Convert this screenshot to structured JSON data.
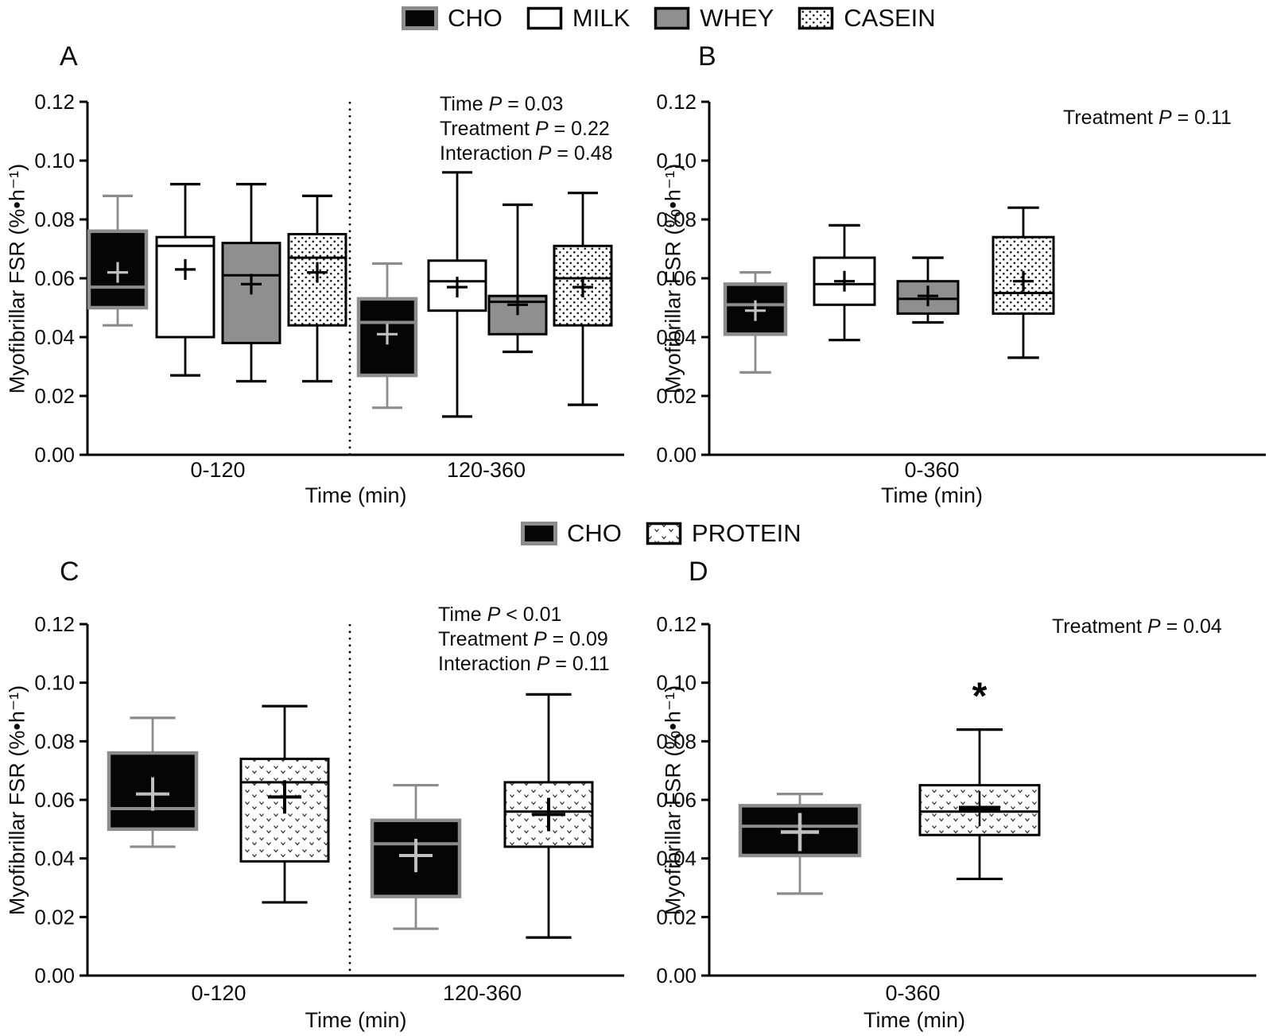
{
  "figure": {
    "y_ticks": [
      "0.00",
      "0.02",
      "0.04",
      "0.06",
      "0.08",
      "0.10",
      "0.12"
    ],
    "ylim": [
      0,
      0.12
    ],
    "colors": {
      "cho_fill": "#050505",
      "cho_border": "#8c8c8c",
      "cho_mean": "#c0c0c0",
      "milk_fill": "#ffffff",
      "whey_fill": "#8f8f8f",
      "line_black": "#000000",
      "background": "#ffffff"
    }
  },
  "legends": [
    {
      "items": [
        {
          "label": "CHO",
          "style": "cho"
        },
        {
          "label": "MILK",
          "style": "milk"
        },
        {
          "label": "WHEY",
          "style": "whey"
        },
        {
          "label": "CASEIN",
          "style": "casein"
        }
      ]
    },
    {
      "items": [
        {
          "label": "CHO",
          "style": "cho"
        },
        {
          "label": "PROTEIN",
          "style": "protein"
        }
      ]
    }
  ],
  "chart_data": [
    {
      "type": "boxplot",
      "panel": "A",
      "ylabel": "Myofibrillar FSR (%•h⁻¹)",
      "xlabel": "Time (min)",
      "ylim": [
        0,
        0.12
      ],
      "stats": [
        {
          "pre": "Time ",
          "p": "P",
          "post": " = 0.03"
        },
        {
          "pre": "Treatment ",
          "p": "P",
          "post": " = 0.22"
        },
        {
          "pre": "Interaction ",
          "p": "P",
          "post": " = 0.48"
        }
      ],
      "groups": [
        {
          "label": "0-120",
          "boxes": [
            {
              "series": "CHO",
              "low": 0.044,
              "q1": 0.05,
              "median": 0.057,
              "q3": 0.076,
              "high": 0.088,
              "mean": 0.062
            },
            {
              "series": "MILK",
              "low": 0.027,
              "q1": 0.04,
              "median": 0.071,
              "q3": 0.074,
              "high": 0.092,
              "mean": 0.063
            },
            {
              "series": "WHEY",
              "low": 0.025,
              "q1": 0.038,
              "median": 0.061,
              "q3": 0.072,
              "high": 0.092,
              "mean": 0.058
            },
            {
              "series": "CASEIN",
              "low": 0.025,
              "q1": 0.044,
              "median": 0.067,
              "q3": 0.075,
              "high": 0.088,
              "mean": 0.062
            }
          ]
        },
        {
          "label": "120-360",
          "boxes": [
            {
              "series": "CHO",
              "low": 0.016,
              "q1": 0.027,
              "median": 0.045,
              "q3": 0.053,
              "high": 0.065,
              "mean": 0.041
            },
            {
              "series": "MILK",
              "low": 0.013,
              "q1": 0.049,
              "median": 0.059,
              "q3": 0.066,
              "high": 0.096,
              "mean": 0.057
            },
            {
              "series": "WHEY",
              "low": 0.035,
              "q1": 0.041,
              "median": 0.052,
              "q3": 0.054,
              "high": 0.085,
              "mean": 0.051
            },
            {
              "series": "CASEIN",
              "low": 0.017,
              "q1": 0.044,
              "median": 0.06,
              "q3": 0.071,
              "high": 0.089,
              "mean": 0.057
            }
          ]
        }
      ]
    },
    {
      "type": "boxplot",
      "panel": "B",
      "ylabel": "Myofibrillar FSR (%•h⁻¹)",
      "xlabel": "Time (min)",
      "ylim": [
        0,
        0.12
      ],
      "stats": [
        {
          "pre": "Treatment ",
          "p": "P",
          "post": " = 0.11"
        }
      ],
      "groups": [
        {
          "label": "0-360",
          "boxes": [
            {
              "series": "CHO",
              "low": 0.028,
              "q1": 0.041,
              "median": 0.051,
              "q3": 0.058,
              "high": 0.062,
              "mean": 0.049
            },
            {
              "series": "MILK",
              "low": 0.039,
              "q1": 0.051,
              "median": 0.058,
              "q3": 0.067,
              "high": 0.078,
              "mean": 0.059
            },
            {
              "series": "WHEY",
              "low": 0.045,
              "q1": 0.048,
              "median": 0.053,
              "q3": 0.059,
              "high": 0.067,
              "mean": 0.054
            },
            {
              "series": "CASEIN",
              "low": 0.033,
              "q1": 0.048,
              "median": 0.055,
              "q3": 0.074,
              "high": 0.084,
              "mean": 0.059
            }
          ]
        }
      ]
    },
    {
      "type": "boxplot",
      "panel": "C",
      "ylabel": "Myofibrillar FSR (%•h⁻¹)",
      "xlabel": "Time (min)",
      "ylim": [
        0,
        0.12
      ],
      "stats": [
        {
          "pre": "Time ",
          "p": "P",
          "post": " < 0.01"
        },
        {
          "pre": "Treatment ",
          "p": "P",
          "post": " = 0.09"
        },
        {
          "pre": "Interaction ",
          "p": "P",
          "post": " = 0.11"
        }
      ],
      "groups": [
        {
          "label": "0-120",
          "boxes": [
            {
              "series": "CHO",
              "low": 0.044,
              "q1": 0.05,
              "median": 0.057,
              "q3": 0.076,
              "high": 0.088,
              "mean": 0.062
            },
            {
              "series": "PROTEIN",
              "low": 0.025,
              "q1": 0.039,
              "median": 0.066,
              "q3": 0.074,
              "high": 0.092,
              "mean": 0.061
            }
          ]
        },
        {
          "label": "120-360",
          "boxes": [
            {
              "series": "CHO",
              "low": 0.016,
              "q1": 0.027,
              "median": 0.045,
              "q3": 0.053,
              "high": 0.065,
              "mean": 0.041
            },
            {
              "series": "PROTEIN",
              "low": 0.013,
              "q1": 0.044,
              "median": 0.056,
              "q3": 0.066,
              "high": 0.096,
              "mean": 0.055
            }
          ]
        }
      ]
    },
    {
      "type": "boxplot",
      "panel": "D",
      "ylabel": "Myofibrillar FSR (%•h⁻¹)",
      "xlabel": "Time (min)",
      "ylim": [
        0,
        0.12
      ],
      "stats": [
        {
          "pre": "Treatment ",
          "p": "P",
          "post": " = 0.04"
        }
      ],
      "groups": [
        {
          "label": "0-360",
          "boxes": [
            {
              "series": "CHO",
              "low": 0.028,
              "q1": 0.041,
              "median": 0.051,
              "q3": 0.058,
              "high": 0.062,
              "mean": 0.049
            },
            {
              "series": "PROTEIN",
              "low": 0.033,
              "q1": 0.048,
              "median": 0.056,
              "q3": 0.065,
              "high": 0.084,
              "mean": 0.057,
              "mean_bold": true,
              "annotation": "*"
            }
          ]
        }
      ]
    }
  ]
}
